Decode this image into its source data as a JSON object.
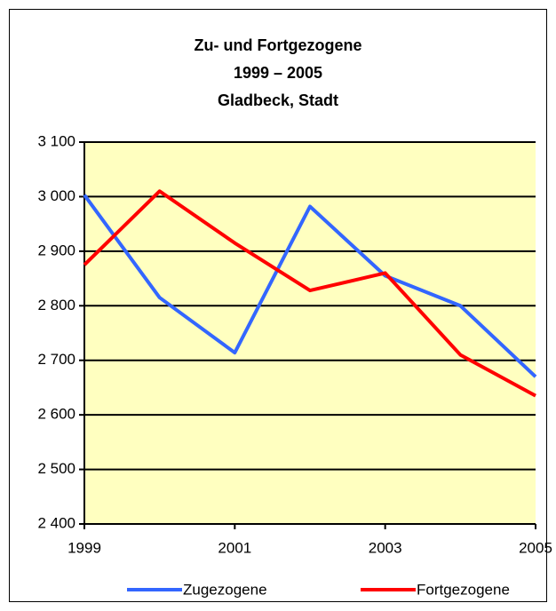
{
  "chart_data": {
    "type": "line",
    "title": [
      "Zu- und Fortgezogene",
      "1999 – 2005",
      "Gladbeck, Stadt"
    ],
    "x": [
      1999,
      2000,
      2001,
      2002,
      2003,
      2004,
      2005
    ],
    "series": [
      {
        "name": "Zugezogene",
        "color": "#3366ff",
        "values": [
          3003,
          2815,
          2714,
          2982,
          2855,
          2800,
          2670
        ]
      },
      {
        "name": "Fortgezogene",
        "color": "#ff0000",
        "values": [
          2875,
          3010,
          2915,
          2828,
          2860,
          2710,
          2635
        ]
      }
    ],
    "xlim": [
      1999,
      2005
    ],
    "xticks": [
      1999,
      2001,
      2003,
      2005
    ],
    "ylim": [
      2400,
      3100
    ],
    "yticks": [
      {
        "value": 2400,
        "label": "2 400"
      },
      {
        "value": 2500,
        "label": "2 500"
      },
      {
        "value": 2600,
        "label": "2 600"
      },
      {
        "value": 2700,
        "label": "2 700"
      },
      {
        "value": 2800,
        "label": "2 800"
      },
      {
        "value": 2900,
        "label": "2 900"
      },
      {
        "value": 3000,
        "label": "3 000"
      },
      {
        "value": 3100,
        "label": "3 100"
      }
    ],
    "grid": true,
    "plot_background": "#ffffc0",
    "legend": "bottom"
  }
}
